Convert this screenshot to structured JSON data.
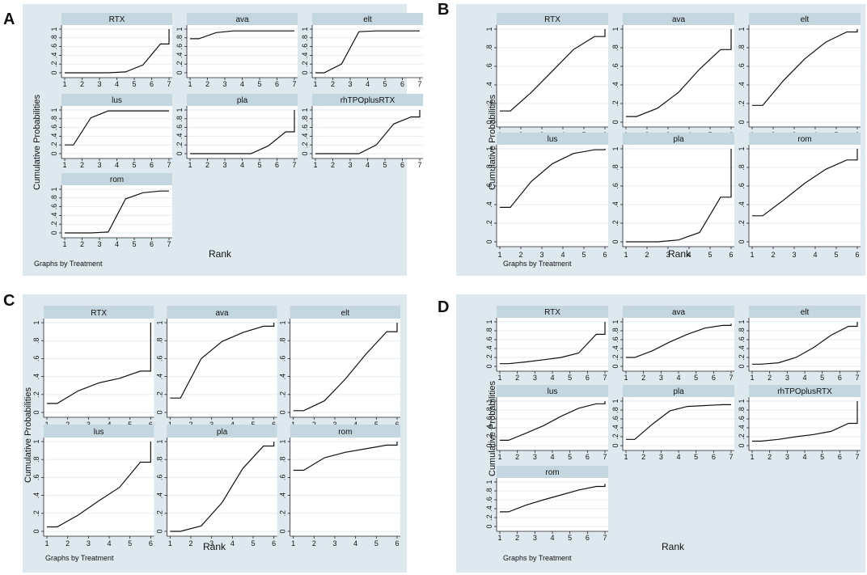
{
  "chart_data": [
    {
      "letter": "A",
      "type": "line",
      "figure_ylabel": "Cumulative Probabilities",
      "figure_xlabel": "Rank",
      "note": "Graphs by Treatment",
      "ranks": 7,
      "ylim": [
        0,
        1
      ],
      "yticklabels": [
        "0",
        ".2",
        ".4",
        ".6",
        ".8",
        "1"
      ],
      "panels": [
        {
          "title": "RTX",
          "values": [
            0.0,
            0.0,
            0.0,
            0.0,
            0.02,
            0.18,
            0.66,
            1.0
          ]
        },
        {
          "title": "ava",
          "values": [
            0.78,
            0.78,
            0.92,
            0.96,
            0.96,
            0.96,
            0.96,
            0.96
          ]
        },
        {
          "title": "elt",
          "values": [
            0.0,
            0.0,
            0.2,
            0.94,
            0.96,
            0.96,
            0.96,
            0.96
          ]
        },
        {
          "title": "lus",
          "values": [
            0.2,
            0.2,
            0.82,
            0.98,
            0.98,
            0.98,
            0.98,
            0.98
          ]
        },
        {
          "title": "pla",
          "values": [
            0.0,
            0.0,
            0.0,
            0.0,
            0.0,
            0.18,
            0.5,
            1.0
          ]
        },
        {
          "title": "rhTPOplusRTX",
          "values": [
            0.0,
            0.0,
            0.0,
            0.0,
            0.2,
            0.68,
            0.84,
            1.0
          ]
        },
        {
          "title": "rom",
          "values": [
            0.0,
            0.0,
            0.0,
            0.02,
            0.78,
            0.92,
            0.96,
            0.96
          ]
        }
      ]
    },
    {
      "letter": "B",
      "type": "line",
      "figure_ylabel": "Cumulative Probabilities",
      "figure_xlabel": "Rank",
      "note": "Graphs by Treatment",
      "ranks": 6,
      "ylim": [
        0,
        1
      ],
      "yticklabels": [
        "0",
        ".2",
        ".4",
        ".6",
        ".8",
        "1"
      ],
      "panels": [
        {
          "title": "RTX",
          "values": [
            0.12,
            0.12,
            0.32,
            0.55,
            0.78,
            0.92,
            1.0
          ]
        },
        {
          "title": "ava",
          "values": [
            0.06,
            0.06,
            0.15,
            0.32,
            0.57,
            0.78,
            1.0
          ]
        },
        {
          "title": "elt",
          "values": [
            0.18,
            0.18,
            0.45,
            0.68,
            0.86,
            0.97,
            1.0
          ]
        },
        {
          "title": "lus",
          "values": [
            0.37,
            0.37,
            0.65,
            0.84,
            0.95,
            0.99,
            1.0
          ]
        },
        {
          "title": "pla",
          "values": [
            0.0,
            0.0,
            0.0,
            0.02,
            0.1,
            0.48,
            1.0
          ]
        },
        {
          "title": "rom",
          "values": [
            0.28,
            0.28,
            0.45,
            0.63,
            0.78,
            0.88,
            1.0
          ]
        }
      ]
    },
    {
      "letter": "C",
      "type": "line",
      "figure_ylabel": "Cumulative Probabilities",
      "figure_xlabel": "Rank",
      "note": "Graphs by Treatment",
      "ranks": 6,
      "ylim": [
        0,
        1
      ],
      "yticklabels": [
        "0",
        ".2",
        ".4",
        ".6",
        ".8",
        "1"
      ],
      "panels": [
        {
          "title": "RTX",
          "values": [
            0.1,
            0.1,
            0.24,
            0.33,
            0.38,
            0.46,
            1.0
          ]
        },
        {
          "title": "ava",
          "values": [
            0.16,
            0.16,
            0.6,
            0.79,
            0.89,
            0.96,
            1.0
          ]
        },
        {
          "title": "elt",
          "values": [
            0.02,
            0.02,
            0.13,
            0.37,
            0.65,
            0.9,
            1.0
          ]
        },
        {
          "title": "lus",
          "values": [
            0.05,
            0.05,
            0.18,
            0.34,
            0.49,
            0.77,
            1.0
          ]
        },
        {
          "title": "pla",
          "values": [
            0.0,
            0.0,
            0.06,
            0.32,
            0.7,
            0.95,
            1.0
          ]
        },
        {
          "title": "rom",
          "values": [
            0.68,
            0.68,
            0.82,
            0.88,
            0.92,
            0.96,
            1.0
          ]
        }
      ]
    },
    {
      "letter": "D",
      "type": "line",
      "figure_ylabel": "Cumulative Probabilities",
      "figure_xlabel": "Rank",
      "note": "Graphs by Treatment",
      "ranks": 7,
      "ylim": [
        0,
        1
      ],
      "yticklabels": [
        "0",
        ".2",
        ".4",
        ".6",
        ".8",
        "1"
      ],
      "panels": [
        {
          "title": "RTX",
          "values": [
            0.06,
            0.06,
            0.1,
            0.15,
            0.2,
            0.3,
            0.72,
            1.0
          ]
        },
        {
          "title": "ava",
          "values": [
            0.2,
            0.2,
            0.35,
            0.55,
            0.72,
            0.86,
            0.92,
            0.96
          ]
        },
        {
          "title": "elt",
          "values": [
            0.05,
            0.05,
            0.08,
            0.2,
            0.42,
            0.7,
            0.9,
            1.0
          ]
        },
        {
          "title": "lus",
          "values": [
            0.12,
            0.12,
            0.28,
            0.45,
            0.66,
            0.84,
            0.94,
            1.0
          ]
        },
        {
          "title": "pla",
          "values": [
            0.14,
            0.14,
            0.48,
            0.78,
            0.88,
            0.9,
            0.92,
            0.92
          ]
        },
        {
          "title": "rhTPOplusRTX",
          "values": [
            0.1,
            0.1,
            0.14,
            0.2,
            0.25,
            0.32,
            0.5,
            1.0
          ]
        },
        {
          "title": "rom",
          "values": [
            0.33,
            0.33,
            0.48,
            0.6,
            0.71,
            0.82,
            0.9,
            0.96
          ]
        }
      ]
    }
  ]
}
